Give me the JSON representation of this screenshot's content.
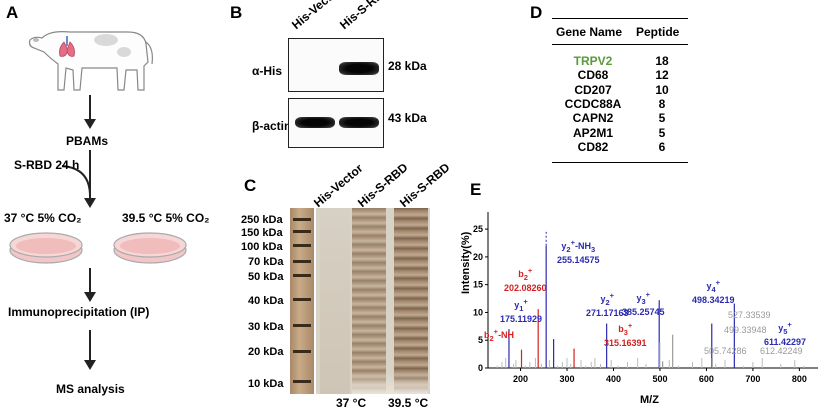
{
  "panels": {
    "A": "A",
    "B": "B",
    "C": "C",
    "D": "D",
    "E": "E"
  },
  "panel_a": {
    "pbams": "PBAMs",
    "treatment": "S-RBD 24 h",
    "cond1": "37 °C  5% CO₂",
    "cond2": "39.5 °C   5% CO₂",
    "ip": "Immunoprecipitation (IP)",
    "ms": "MS analysis"
  },
  "panel_b": {
    "lanes": [
      "His-Vector",
      "His-S-RBD"
    ],
    "rows": [
      {
        "antibody": "α-His",
        "size": "28 kDa"
      },
      {
        "antibody": "β-actin",
        "size": "43 kDa"
      }
    ]
  },
  "panel_c": {
    "lanes": [
      "His-Vector",
      "His-S-RBD",
      "His-S-RBD"
    ],
    "markers": [
      "250 kDa",
      "150 kDa",
      "100 kDa",
      "70 kDa",
      "50 kDa",
      "40 kDa",
      "30 kDa",
      "20 kDa",
      "10 kDa"
    ],
    "temps": [
      "37 °C",
      "39.5 °C"
    ]
  },
  "panel_d": {
    "headers": [
      "Gene Name",
      "Peptide"
    ],
    "rows": [
      {
        "gene": "TRPV2",
        "peptide": "18",
        "highlight": true
      },
      {
        "gene": "CD68",
        "peptide": "12"
      },
      {
        "gene": "CD207",
        "peptide": "10"
      },
      {
        "gene": "CCDC88A",
        "peptide": "8"
      },
      {
        "gene": "CAPN2",
        "peptide": "5"
      },
      {
        "gene": "AP2M1",
        "peptide": "5"
      },
      {
        "gene": "CD82",
        "peptide": "6"
      }
    ],
    "highlight_color": "#5a9a3a"
  },
  "chart_data": {
    "type": "bar",
    "xlabel": "M/Z",
    "ylabel": "Intensity(%)",
    "xlim": [
      130,
      840
    ],
    "ylim": [
      0,
      27
    ],
    "xticks": [
      200,
      300,
      400,
      500,
      600,
      700,
      800
    ],
    "yticks": [
      0,
      5,
      10,
      15,
      20,
      25
    ],
    "peaks": [
      {
        "mz": 175.11929,
        "intensity": 7.0,
        "color": "#2a2ab0"
      },
      {
        "mz": 202.0826,
        "intensity": 3.3,
        "color": "#d42020"
      },
      {
        "mz": 238,
        "intensity": 10.6,
        "color": "#d42020"
      },
      {
        "mz": 255.14575,
        "intensity": 22.0,
        "color": "#2a2ab0"
      },
      {
        "mz": 271.17163,
        "intensity": 5.2,
        "color": "#2a2ab0"
      },
      {
        "mz": 315.16391,
        "intensity": 3.5,
        "color": "#d42020"
      },
      {
        "mz": 385.25745,
        "intensity": 8.0,
        "color": "#2a2ab0"
      },
      {
        "mz": 498.34219,
        "intensity": 12.2,
        "color": "#2a2ab0"
      },
      {
        "mz": 499.33948,
        "intensity": 4.6,
        "color": "#9a9a9a"
      },
      {
        "mz": 505.74286,
        "intensity": 1.2,
        "color": "#9a9a9a"
      },
      {
        "mz": 527.33539,
        "intensity": 6.0,
        "color": "#9a9a9a"
      },
      {
        "mz": 611.42297,
        "intensity": 8.0,
        "color": "#2a2ab0"
      },
      {
        "mz": 612.42249,
        "intensity": 1.8,
        "color": "#9a9a9a"
      },
      {
        "mz": 660,
        "intensity": 11.6,
        "color": "#2a2ab0"
      }
    ],
    "labels": [
      {
        "html": "y<sub>2</sub><sup>+</sup>-NH<sub>3</sub>",
        "value": "255.14575",
        "color": "blue"
      },
      {
        "html": "b<sub>2</sub><sup>+</sup>",
        "value": "202.08260",
        "color": "red"
      },
      {
        "html": "y<sub>1</sub><sup>+</sup>",
        "value": "175.11929",
        "color": "blue"
      },
      {
        "html": "y<sub>2</sub><sup>+</sup>",
        "value": "271.17163",
        "color": "blue"
      },
      {
        "html": "y<sub>3</sub><sup>+</sup>",
        "value": "385.25745",
        "color": "blue"
      },
      {
        "html": "y<sub>4</sub><sup>+</sup>",
        "value": "498.34219",
        "color": "blue"
      },
      {
        "html": "y<sub>5</sub><sup>+</sup>",
        "value": "611.42297",
        "color": "blue"
      },
      {
        "html": "b<sub>2</sub><sup>+</sup>-NH",
        "value": "",
        "color": "red"
      },
      {
        "html": "b<sub>3</sub><sup>+</sup>",
        "value": "315.16391",
        "color": "red"
      },
      {
        "html": "",
        "value": "527.33539",
        "color": "grey"
      },
      {
        "html": "",
        "value": "499.33948",
        "color": "grey"
      },
      {
        "html": "",
        "value": "505.74286",
        "color": "grey"
      },
      {
        "html": "",
        "value": "612.42249",
        "color": "grey"
      }
    ]
  }
}
